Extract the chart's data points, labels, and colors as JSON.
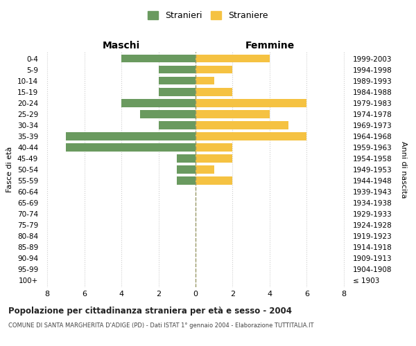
{
  "age_groups": [
    "100+",
    "95-99",
    "90-94",
    "85-89",
    "80-84",
    "75-79",
    "70-74",
    "65-69",
    "60-64",
    "55-59",
    "50-54",
    "45-49",
    "40-44",
    "35-39",
    "30-34",
    "25-29",
    "20-24",
    "15-19",
    "10-14",
    "5-9",
    "0-4"
  ],
  "birth_years": [
    "≤ 1903",
    "1904-1908",
    "1909-1913",
    "1914-1918",
    "1919-1923",
    "1924-1928",
    "1929-1933",
    "1934-1938",
    "1939-1943",
    "1944-1948",
    "1949-1953",
    "1954-1958",
    "1959-1963",
    "1964-1968",
    "1969-1973",
    "1974-1978",
    "1979-1983",
    "1984-1988",
    "1989-1993",
    "1994-1998",
    "1999-2003"
  ],
  "males": [
    0,
    0,
    0,
    0,
    0,
    0,
    0,
    0,
    0,
    1,
    1,
    1,
    7,
    7,
    2,
    3,
    4,
    2,
    2,
    2,
    4
  ],
  "females": [
    0,
    0,
    0,
    0,
    0,
    0,
    0,
    0,
    0,
    2,
    1,
    2,
    2,
    6,
    5,
    4,
    6,
    2,
    1,
    2,
    4
  ],
  "male_color": "#6a9a5f",
  "female_color": "#f5c242",
  "background_color": "#ffffff",
  "grid_color": "#cccccc",
  "dashed_line_color": "#999966",
  "title": "Popolazione per cittadinanza straniera per età e sesso - 2004",
  "subtitle": "COMUNE DI SANTA MARGHERITA D'ADIGE (PD) - Dati ISTAT 1° gennaio 2004 - Elaborazione TUTTITALIA.IT",
  "ylabel_left": "Fasce di età",
  "ylabel_right": "Anni di nascita",
  "xlabel_left": "Maschi",
  "xlabel_right": "Femmine",
  "legend_stranieri": "Stranieri",
  "legend_straniere": "Straniere",
  "xlim": 8
}
